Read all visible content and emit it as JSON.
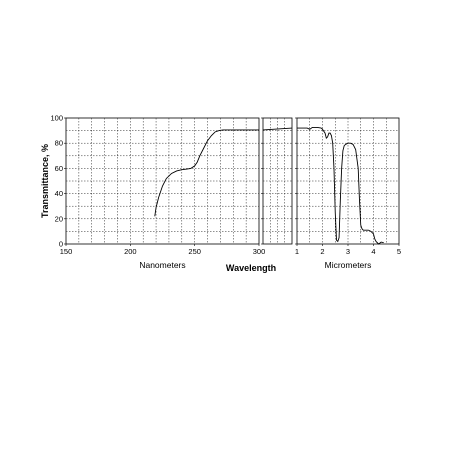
{
  "chart_data": {
    "type": "line",
    "ylabel": "Transmittance, %",
    "xlabel": "Wavelength",
    "y_ticks": [
      "0",
      "20",
      "40",
      "60",
      "80",
      "100"
    ],
    "ylim": [
      0,
      100
    ],
    "grid": "dashed",
    "panels": [
      {
        "name": "nm",
        "sublabel": "Nanometers",
        "xlim": [
          150,
          300
        ],
        "x_ticks": [
          "150",
          "200",
          "250",
          "300"
        ],
        "series": {
          "x": [
            219,
            220,
            222,
            225,
            228,
            232,
            236,
            240,
            244,
            247,
            250,
            252,
            254,
            257,
            260,
            263,
            266,
            269,
            272,
            280,
            290,
            300
          ],
          "y": [
            22,
            29,
            37,
            46,
            52,
            56,
            58,
            59,
            59.5,
            60,
            62,
            65,
            70,
            76,
            82,
            86,
            89,
            90,
            90.5,
            90.5,
            90.5,
            90.5
          ]
        }
      },
      {
        "name": "nm-um-bridge",
        "sublabel": "",
        "x_ticks": [],
        "series": {
          "y_start": 90.5,
          "y_end": 92
        }
      },
      {
        "name": "um",
        "sublabel": "Micrometers",
        "xlim": [
          1,
          5
        ],
        "x_ticks": [
          "1",
          "2",
          "3",
          "4",
          "5"
        ],
        "series": {
          "x": [
            1.0,
            1.2,
            1.4,
            1.5,
            1.6,
            1.8,
            1.95,
            2.0,
            2.1,
            2.15,
            2.2,
            2.25,
            2.3,
            2.35,
            2.4,
            2.45,
            2.5,
            2.55,
            2.6,
            2.65,
            2.7,
            2.75,
            2.8,
            2.85,
            2.9,
            3.0,
            3.1,
            3.2,
            3.3,
            3.4,
            3.45,
            3.5,
            3.55,
            3.6,
            3.7,
            3.8,
            3.9,
            4.0,
            4.05,
            4.1,
            4.2,
            4.3,
            4.4
          ],
          "y": [
            92,
            92,
            92,
            91,
            92.5,
            92.5,
            92,
            91,
            88,
            84,
            85,
            88,
            88,
            86,
            80,
            60,
            25,
            3,
            2,
            5,
            35,
            60,
            74,
            78,
            79,
            80,
            80,
            79,
            75,
            60,
            35,
            15,
            12,
            11,
            11,
            11,
            10,
            8,
            4,
            2,
            0,
            1.5,
            1
          ]
        }
      }
    ]
  }
}
